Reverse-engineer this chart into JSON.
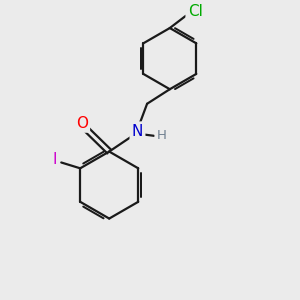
{
  "background_color": "#ebebeb",
  "atom_colors": {
    "O": "#ff0000",
    "N": "#0000cd",
    "H": "#708090",
    "I": "#cc00cc",
    "Cl": "#00aa00",
    "C": "#000000"
  },
  "bond_color": "#1a1a1a",
  "bond_width": 1.6,
  "font_size": 9.5
}
